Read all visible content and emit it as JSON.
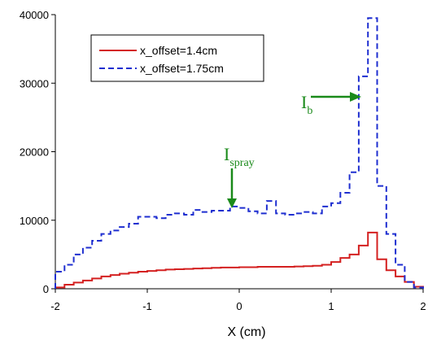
{
  "chart_data": {
    "type": "line",
    "xlabel": "X (cm)",
    "ylabel": "",
    "xlim": [
      -2,
      2
    ],
    "ylim": [
      0,
      40000
    ],
    "xticks": [
      "-2",
      "-1",
      "0",
      "1",
      "2"
    ],
    "yticks": [
      "0",
      "10000",
      "20000",
      "30000",
      "40000"
    ],
    "legend_position": "top-left",
    "bin_width": 0.1,
    "series": [
      {
        "name": "x_offset=1.4cm",
        "style": "solid",
        "color": "#d42020",
        "x": [
          -2.0,
          -1.9,
          -1.8,
          -1.7,
          -1.6,
          -1.5,
          -1.4,
          -1.3,
          -1.2,
          -1.1,
          -1.0,
          -0.9,
          -0.8,
          -0.7,
          -0.6,
          -0.5,
          -0.4,
          -0.3,
          -0.2,
          -0.1,
          0.0,
          0.1,
          0.2,
          0.3,
          0.4,
          0.5,
          0.6,
          0.7,
          0.8,
          0.9,
          1.0,
          1.1,
          1.2,
          1.3,
          1.4,
          1.5,
          1.6,
          1.7,
          1.8,
          1.9
        ],
        "y": [
          200,
          600,
          900,
          1200,
          1500,
          1800,
          2000,
          2200,
          2350,
          2500,
          2600,
          2700,
          2800,
          2850,
          2900,
          2950,
          3000,
          3050,
          3100,
          3100,
          3150,
          3150,
          3200,
          3200,
          3200,
          3200,
          3250,
          3300,
          3350,
          3500,
          3900,
          4500,
          5000,
          6300,
          8200,
          4300,
          2700,
          1800,
          1000,
          300
        ]
      },
      {
        "name": "x_offset=1.75cm",
        "style": "dashed",
        "color": "#1f2fd0",
        "x": [
          -2.0,
          -1.9,
          -1.8,
          -1.7,
          -1.6,
          -1.5,
          -1.4,
          -1.3,
          -1.2,
          -1.1,
          -1.0,
          -0.9,
          -0.8,
          -0.7,
          -0.6,
          -0.5,
          -0.4,
          -0.3,
          -0.2,
          -0.1,
          0.0,
          0.1,
          0.2,
          0.3,
          0.4,
          0.5,
          0.6,
          0.7,
          0.8,
          0.9,
          1.0,
          1.1,
          1.2,
          1.3,
          1.4,
          1.5,
          1.6,
          1.7,
          1.8,
          1.9
        ],
        "y": [
          2500,
          3500,
          5000,
          6000,
          7000,
          8000,
          8500,
          9000,
          9500,
          10500,
          10500,
          10300,
          10800,
          11000,
          10800,
          11500,
          11200,
          11400,
          11400,
          12000,
          11800,
          11300,
          11000,
          12800,
          11000,
          10800,
          11000,
          11200,
          11000,
          12000,
          12500,
          14000,
          17000,
          31000,
          39500,
          15000,
          8000,
          3500,
          1000,
          200
        ]
      }
    ],
    "annotations": [
      {
        "text": "I",
        "sub": "spray",
        "arrow": "down",
        "color": "#1a8a1a",
        "target_x": -0.2,
        "target_y": 11800
      },
      {
        "text": "I",
        "sub": "b",
        "arrow": "right",
        "color": "#1a8a1a",
        "target_x": 1.3,
        "target_y": 28500
      }
    ]
  }
}
